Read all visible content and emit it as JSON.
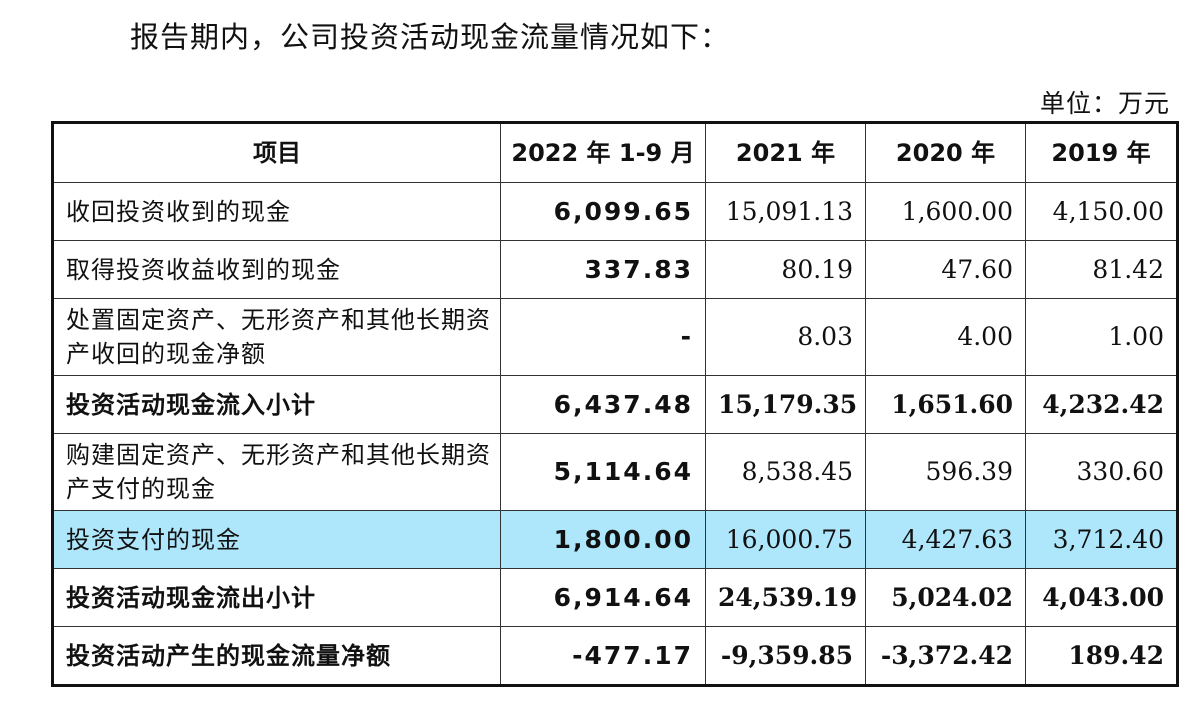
{
  "intro_text": "报告期内，公司投资活动现金流量情况如下：",
  "unit_text": "单位：万元",
  "table": {
    "headers": [
      "项目",
      "2022 年 1-9 月",
      "2021 年",
      "2020 年",
      "2019 年"
    ],
    "rows": [
      {
        "label": "收回投资收到的现金",
        "values": [
          "6,099.65",
          "15,091.13",
          "1,600.00",
          "4,150.00"
        ]
      },
      {
        "label": "取得投资收益收到的现金",
        "values": [
          "337.83",
          "80.19",
          "47.60",
          "81.42"
        ]
      },
      {
        "label": "处置固定资产、无形资产和其他长期资产收回的现金净额",
        "values": [
          "-",
          "8.03",
          "4.00",
          "1.00"
        ]
      },
      {
        "label": "投资活动现金流入小计",
        "values": [
          "6,437.48",
          "15,179.35",
          "1,651.60",
          "4,232.42"
        ]
      },
      {
        "label": "购建固定资产、无形资产和其他长期资产支付的现金",
        "values": [
          "5,114.64",
          "8,538.45",
          "596.39",
          "330.60"
        ]
      },
      {
        "label": "投资支付的现金",
        "values": [
          "1,800.00",
          "16,000.75",
          "4,427.63",
          "3,712.40"
        ]
      },
      {
        "label": "投资活动现金流出小计",
        "values": [
          "6,914.64",
          "24,539.19",
          "5,024.02",
          "4,043.00"
        ]
      },
      {
        "label": "投资活动产生的现金流量净额",
        "values": [
          "-477.17",
          "-9,359.85",
          "-3,372.42",
          "189.42"
        ]
      }
    ]
  },
  "colors": {
    "highlight": "#aee6fb",
    "text": "#111111",
    "border": "#333333"
  }
}
